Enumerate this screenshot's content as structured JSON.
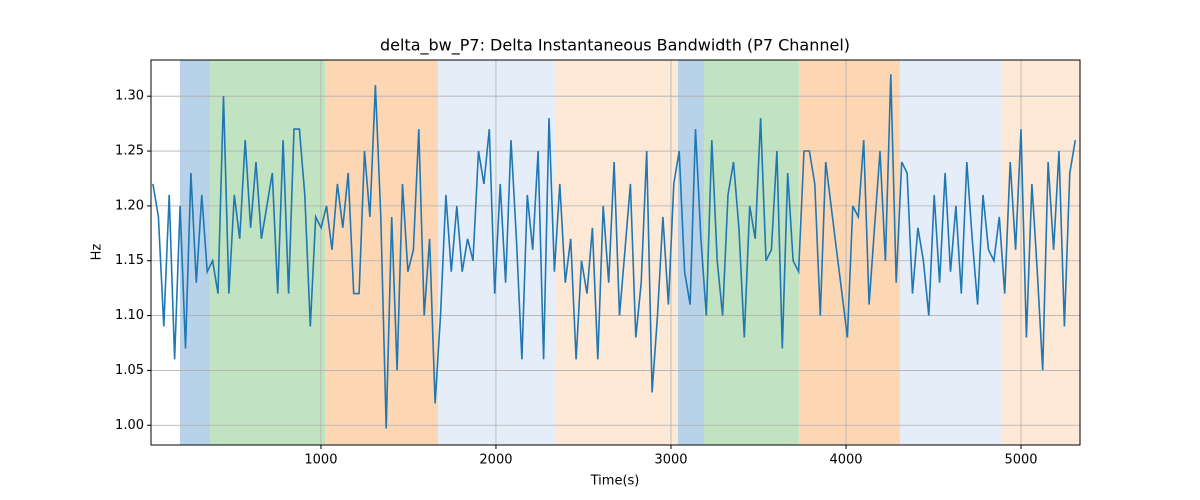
{
  "chart_data": {
    "type": "line",
    "title": "delta_bw_P7: Delta Instantaneous Bandwidth (P7 Channel)",
    "xlabel": "Time(s)",
    "ylabel": "Hz",
    "xlim": [
      29,
      5337
    ],
    "ylim": [
      0.982,
      1.333
    ],
    "xticks": [
      1000,
      2000,
      3000,
      4000,
      5000
    ],
    "yticks": [
      {
        "value": 1.0,
        "label": "1.00"
      },
      {
        "value": 1.05,
        "label": "1.05"
      },
      {
        "value": 1.1,
        "label": "1.10"
      },
      {
        "value": 1.15,
        "label": "1.15"
      },
      {
        "value": 1.2,
        "label": "1.20"
      },
      {
        "value": 1.25,
        "label": "1.25"
      },
      {
        "value": 1.3,
        "label": "1.30"
      }
    ],
    "grid": true,
    "spans": [
      {
        "start": 194,
        "end": 366,
        "color": "#b8d3e9"
      },
      {
        "start": 366,
        "end": 1023,
        "color": "#c1e3c1"
      },
      {
        "start": 1023,
        "end": 1669,
        "color": "#fdd7b4"
      },
      {
        "start": 1669,
        "end": 2343,
        "color": "#e5eef8"
      },
      {
        "start": 2343,
        "end": 3040,
        "color": "#fde9d6"
      },
      {
        "start": 3040,
        "end": 3189,
        "color": "#b8d3e9"
      },
      {
        "start": 3189,
        "end": 3731,
        "color": "#c1e3c1"
      },
      {
        "start": 3731,
        "end": 4309,
        "color": "#fdd7b4"
      },
      {
        "start": 4309,
        "end": 4891,
        "color": "#e5eef8"
      },
      {
        "start": 4891,
        "end": 5337,
        "color": "#fde9d6"
      }
    ],
    "x": [
      40,
      71,
      102,
      133,
      164,
      195,
      226,
      257,
      288,
      319,
      350,
      381,
      412,
      443,
      474,
      505,
      536,
      567,
      598,
      629,
      660,
      691,
      722,
      753,
      784,
      815,
      846,
      877,
      908,
      939,
      970,
      1001,
      1032,
      1063,
      1094,
      1125,
      1156,
      1187,
      1218,
      1249,
      1280,
      1311,
      1342,
      1373,
      1404,
      1435,
      1466,
      1497,
      1528,
      1559,
      1590,
      1621,
      1652,
      1683,
      1714,
      1745,
      1776,
      1807,
      1838,
      1869,
      1900,
      1931,
      1962,
      1993,
      2024,
      2055,
      2086,
      2117,
      2148,
      2179,
      2210,
      2241,
      2272,
      2303,
      2334,
      2365,
      2396,
      2427,
      2458,
      2489,
      2520,
      2551,
      2582,
      2613,
      2644,
      2675,
      2706,
      2737,
      2768,
      2799,
      2830,
      2861,
      2892,
      2923,
      2954,
      2985,
      3016,
      3047,
      3078,
      3109,
      3140,
      3171,
      3202,
      3233,
      3264,
      3295,
      3326,
      3357,
      3388,
      3419,
      3450,
      3481,
      3512,
      3543,
      3574,
      3605,
      3636,
      3667,
      3698,
      3729,
      3760,
      3791,
      3822,
      3853,
      3884,
      3915,
      3946,
      3977,
      4008,
      4039,
      4070,
      4101,
      4132,
      4163,
      4194,
      4225,
      4256,
      4287,
      4318,
      4349,
      4380,
      4411,
      4442,
      4473,
      4504,
      4535,
      4566,
      4597,
      4628,
      4659,
      4690,
      4721,
      4752,
      4783,
      4814,
      4845,
      4876,
      4907,
      4938,
      4969,
      5000,
      5031,
      5062,
      5093,
      5124,
      5155,
      5186,
      5217,
      5248,
      5279,
      5310
    ],
    "series": [
      {
        "color": "#1f77b4",
        "values": [
          1.22,
          1.19,
          1.09,
          1.21,
          1.06,
          1.2,
          1.07,
          1.23,
          1.13,
          1.21,
          1.14,
          1.15,
          1.12,
          1.3,
          1.12,
          1.21,
          1.17,
          1.26,
          1.18,
          1.24,
          1.17,
          1.2,
          1.23,
          1.12,
          1.26,
          1.12,
          1.27,
          1.27,
          1.21,
          1.09,
          1.19,
          1.18,
          1.2,
          1.16,
          1.22,
          1.18,
          1.23,
          1.12,
          1.12,
          1.25,
          1.19,
          1.31,
          1.19,
          0.997,
          1.19,
          1.05,
          1.22,
          1.14,
          1.16,
          1.27,
          1.1,
          1.17,
          1.02,
          1.1,
          1.21,
          1.14,
          1.2,
          1.14,
          1.17,
          1.15,
          1.25,
          1.22,
          1.27,
          1.12,
          1.22,
          1.13,
          1.26,
          1.17,
          1.06,
          1.21,
          1.16,
          1.25,
          1.06,
          1.28,
          1.14,
          1.22,
          1.13,
          1.17,
          1.06,
          1.15,
          1.12,
          1.18,
          1.06,
          1.2,
          1.13,
          1.24,
          1.1,
          1.16,
          1.22,
          1.08,
          1.13,
          1.25,
          1.03,
          1.1,
          1.19,
          1.11,
          1.22,
          1.25,
          1.14,
          1.11,
          1.27,
          1.17,
          1.1,
          1.26,
          1.15,
          1.1,
          1.21,
          1.24,
          1.18,
          1.08,
          1.2,
          1.17,
          1.28,
          1.15,
          1.16,
          1.25,
          1.07,
          1.23,
          1.15,
          1.14,
          1.25,
          1.25,
          1.22,
          1.1,
          1.24,
          1.2,
          1.16,
          1.12,
          1.08,
          1.2,
          1.19,
          1.26,
          1.11,
          1.18,
          1.25,
          1.15,
          1.32,
          1.13,
          1.24,
          1.23,
          1.12,
          1.18,
          1.15,
          1.1,
          1.21,
          1.13,
          1.23,
          1.14,
          1.2,
          1.12,
          1.24,
          1.17,
          1.11,
          1.21,
          1.16,
          1.15,
          1.19,
          1.12,
          1.24,
          1.16,
          1.27,
          1.08,
          1.22,
          1.14,
          1.05,
          1.24,
          1.16,
          1.25,
          1.09,
          1.23,
          1.26
        ]
      }
    ]
  }
}
